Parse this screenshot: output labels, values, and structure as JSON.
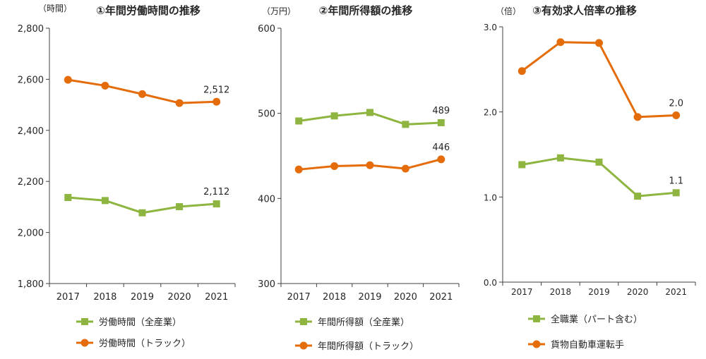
{
  "colors": {
    "green": "#8DB53F",
    "orange": "#E46C0A",
    "axis": "#404040",
    "text": "#262626"
  },
  "chart_data": [
    {
      "type": "line",
      "title": "①年間労働時間の推移",
      "unit": "（時間）",
      "categories": [
        "2017",
        "2018",
        "2019",
        "2020",
        "2021"
      ],
      "ylim": [
        1800,
        2800
      ],
      "yticks": [
        1800,
        2000,
        2200,
        2400,
        2600,
        2800
      ],
      "ytick_labels": [
        "1,800",
        "2,000",
        "2,200",
        "2,400",
        "2,600",
        "2,800"
      ],
      "grid": false,
      "legend_position": "bottom",
      "series": [
        {
          "name": "労働時間（全産業）",
          "color": "#8DB53F",
          "marker": "square",
          "values": [
            2137,
            2125,
            2077,
            2101,
            2112
          ],
          "last_label": "2,112"
        },
        {
          "name": "労働時間（トラック）",
          "color": "#E46C0A",
          "marker": "circle",
          "values": [
            2598,
            2575,
            2542,
            2507,
            2512
          ],
          "last_label": "2,512"
        }
      ]
    },
    {
      "type": "line",
      "title": "②年間所得額の推移",
      "unit": "（万円）",
      "categories": [
        "2017",
        "2018",
        "2019",
        "2020",
        "2021"
      ],
      "ylim": [
        300,
        600
      ],
      "yticks": [
        300,
        400,
        500,
        600
      ],
      "ytick_labels": [
        "300",
        "400",
        "500",
        "600"
      ],
      "grid": false,
      "legend_position": "bottom",
      "series": [
        {
          "name": "年間所得額（全産業）",
          "color": "#8DB53F",
          "marker": "square",
          "values": [
            491,
            497,
            501,
            487,
            489
          ],
          "last_label": "489"
        },
        {
          "name": "年間所得額（トラック）",
          "color": "#E46C0A",
          "marker": "circle",
          "values": [
            434,
            438,
            439,
            435,
            446
          ],
          "last_label": "446"
        }
      ]
    },
    {
      "type": "line",
      "title": "③有効求人倍率の推移",
      "unit": "（倍）",
      "categories": [
        "2017",
        "2018",
        "2019",
        "2020",
        "2021"
      ],
      "ylim": [
        0,
        3
      ],
      "yticks": [
        0,
        1,
        2,
        3
      ],
      "ytick_labels": [
        "0.0",
        "1.0",
        "2.0",
        "3.0"
      ],
      "grid": false,
      "legend_position": "bottom",
      "series": [
        {
          "name": "全職業（パート含む）",
          "color": "#8DB53F",
          "marker": "square",
          "values": [
            1.38,
            1.46,
            1.41,
            1.01,
            1.05
          ],
          "last_label": "1.1"
        },
        {
          "name": "貨物自動車運転手",
          "color": "#E46C0A",
          "marker": "circle",
          "values": [
            2.48,
            2.82,
            2.81,
            1.94,
            1.96
          ],
          "last_label": "2.0"
        }
      ]
    }
  ]
}
